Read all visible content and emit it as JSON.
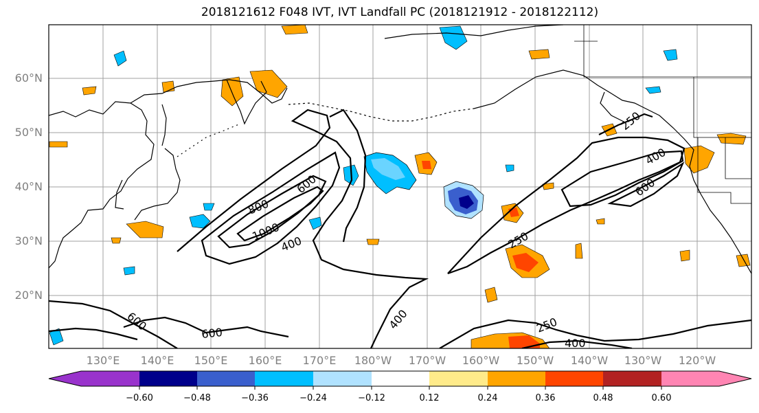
{
  "title": "2018121612 F048 IVT, IVT Landfall PC (2018121912 - 2018122112)",
  "map": {
    "lat_labels": [
      "60°N",
      "50°N",
      "40°N",
      "30°N",
      "20°N"
    ],
    "lon_labels": [
      "130°E",
      "140°E",
      "150°E",
      "160°E",
      "170°E",
      "180°W",
      "170°W",
      "160°W",
      "150°W",
      "140°W",
      "130°W",
      "120°W"
    ],
    "contour_labels": [
      "800",
      "1000",
      "600",
      "400",
      "600",
      "600",
      "400",
      "250",
      "400",
      "600",
      "250",
      "250",
      "400"
    ],
    "land_color": "#000000",
    "contour_color": "#000000"
  },
  "colorbar": {
    "colors": [
      "#9933cc",
      "#00008b",
      "#3a5fcd",
      "#00bfff",
      "#b0e2ff",
      "#ffffff",
      "#ffeb8a",
      "#ffa500",
      "#ff4500",
      "#b22222",
      "#ff85b3"
    ],
    "tick_labels": [
      "−0.60",
      "−0.48",
      "−0.36",
      "−0.24",
      "−0.12",
      "0.12",
      "0.24",
      "0.36",
      "0.48",
      "0.60"
    ]
  }
}
